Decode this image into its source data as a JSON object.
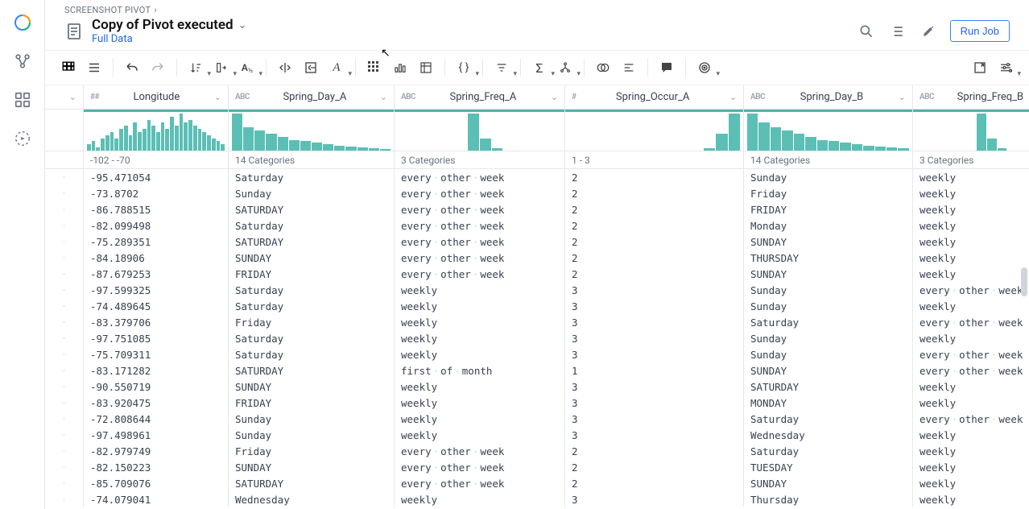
{
  "breadcrumb": {
    "label": "SCREENSHOT PIVOT"
  },
  "doc": {
    "title": "Copy of Pivot executed",
    "subtitle": "Full Data"
  },
  "actions": {
    "run": "Run Job"
  },
  "columns": [
    {
      "key": "longitude",
      "name": "Longitude",
      "type": "##",
      "summary": "-102 - -70",
      "spark": [
        2,
        3,
        1,
        4,
        5,
        6,
        4,
        7,
        8,
        5,
        9,
        6,
        7,
        10,
        8,
        6,
        9,
        7,
        11,
        8,
        12,
        9,
        10,
        8,
        7,
        6,
        5,
        4,
        3,
        2
      ]
    },
    {
      "key": "spring_day_a",
      "name": "Spring_Day_A",
      "type": "ABC",
      "summary": "14 Categories",
      "spark": [
        48,
        30,
        26,
        22,
        18,
        14,
        12,
        10,
        8,
        6,
        5,
        4,
        3,
        2
      ]
    },
    {
      "key": "spring_freq_a",
      "name": "Spring_Freq_A",
      "type": "ABC",
      "summary": "3 Categories",
      "spark": [
        0,
        0,
        0,
        0,
        0,
        0,
        48,
        16,
        3,
        0,
        0,
        0,
        0,
        0
      ]
    },
    {
      "key": "spring_occur_a",
      "name": "Spring_Occur_A",
      "type": "#",
      "summary": "1 - 3",
      "spark": [
        0,
        0,
        0,
        0,
        0,
        0,
        0,
        0,
        0,
        0,
        0,
        3,
        22,
        48
      ]
    },
    {
      "key": "spring_day_b",
      "name": "Spring_Day_B",
      "type": "ABC",
      "summary": "14 Categories",
      "spark": [
        48,
        36,
        30,
        26,
        22,
        18,
        14,
        12,
        10,
        8,
        6,
        5,
        4,
        3
      ]
    },
    {
      "key": "spring_freq_b",
      "name": "Spring_Freq_B",
      "type": "ABC",
      "summary": "3 Categories",
      "spark": [
        0,
        0,
        0,
        0,
        0,
        0,
        48,
        16,
        3,
        0,
        0,
        0,
        0,
        0
      ]
    }
  ],
  "rows": [
    [
      "-95.471054",
      "Saturday",
      "every other week",
      "2",
      "Sunday",
      "weekly"
    ],
    [
      "-73.8702",
      "Sunday",
      "every other week",
      "2",
      "Friday",
      "weekly"
    ],
    [
      "-86.788515",
      "SATURDAY",
      "every other week",
      "2",
      "FRIDAY",
      "weekly"
    ],
    [
      "-82.099498",
      "Saturday",
      "every other week",
      "2",
      "Monday",
      "weekly"
    ],
    [
      "-75.289351",
      "SATURDAY",
      "every other week",
      "2",
      "SUNDAY",
      "weekly"
    ],
    [
      "-84.18906",
      "SUNDAY",
      "every other week",
      "2",
      "THURSDAY",
      "weekly"
    ],
    [
      "-87.679253",
      "FRIDAY",
      "every other week",
      "2",
      "SUNDAY",
      "weekly"
    ],
    [
      "-97.599325",
      "Saturday",
      "weekly",
      "3",
      "Sunday",
      "every other week"
    ],
    [
      "-74.489645",
      "Saturday",
      "weekly",
      "3",
      "Sunday",
      "weekly"
    ],
    [
      "-83.379706",
      "Friday",
      "weekly",
      "3",
      "Saturday",
      "every other week"
    ],
    [
      "-97.751085",
      "Saturday",
      "weekly",
      "3",
      "Sunday",
      "weekly"
    ],
    [
      "-75.709311",
      "Saturday",
      "weekly",
      "3",
      "Sunday",
      "every other week"
    ],
    [
      "-83.171282",
      "SATURDAY",
      "first of month",
      "1",
      "SUNDAY",
      "every other week"
    ],
    [
      "-90.550719",
      "SUNDAY",
      "weekly",
      "3",
      "SATURDAY",
      "weekly"
    ],
    [
      "-83.920475",
      "FRIDAY",
      "weekly",
      "3",
      "MONDAY",
      "weekly"
    ],
    [
      "-72.808644",
      "Sunday",
      "weekly",
      "3",
      "Saturday",
      "every other week"
    ],
    [
      "-97.498961",
      "Sunday",
      "weekly",
      "3",
      "Wednesday",
      "weekly"
    ],
    [
      "-82.979749",
      "Friday",
      "every other week",
      "2",
      "Saturday",
      "weekly"
    ],
    [
      "-82.150223",
      "SUNDAY",
      "every other week",
      "2",
      "TUESDAY",
      "weekly"
    ],
    [
      "-85.709076",
      "SATURDAY",
      "every other week",
      "2",
      "SUNDAY",
      "weekly"
    ],
    [
      "-74.079041",
      "Wednesday",
      "weekly",
      "3",
      "Thursday",
      "weekly"
    ]
  ],
  "colors": {
    "accent": "#4fb3a9",
    "link": "#2563eb"
  }
}
